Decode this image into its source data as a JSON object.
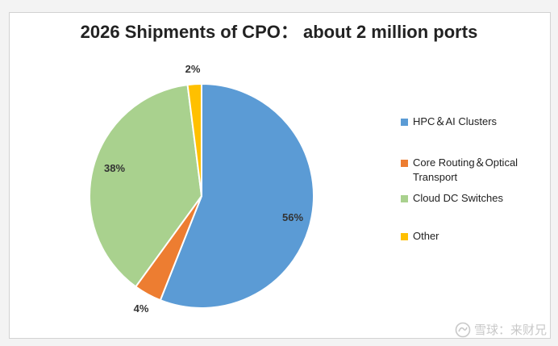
{
  "chart_data": {
    "type": "pie",
    "title": "2026 Shipments of CPO： about 2 million ports",
    "slices": [
      {
        "name": "HPC＆AI Clusters",
        "value": 56,
        "label": "56%",
        "color": "#5b9bd5"
      },
      {
        "name": "Core Routing＆Optical Transport",
        "value": 4,
        "label": "4%",
        "color": "#ed7d31"
      },
      {
        "name": "Cloud DC Switches",
        "value": 38,
        "label": "38%",
        "color": "#a9d18e"
      },
      {
        "name": "Other",
        "value": 2,
        "label": "2%",
        "color": "#ffc000"
      }
    ],
    "legend_position": "right"
  },
  "watermark": {
    "text": "雪球：来财兄",
    "icon": "snowball-logo-icon"
  }
}
